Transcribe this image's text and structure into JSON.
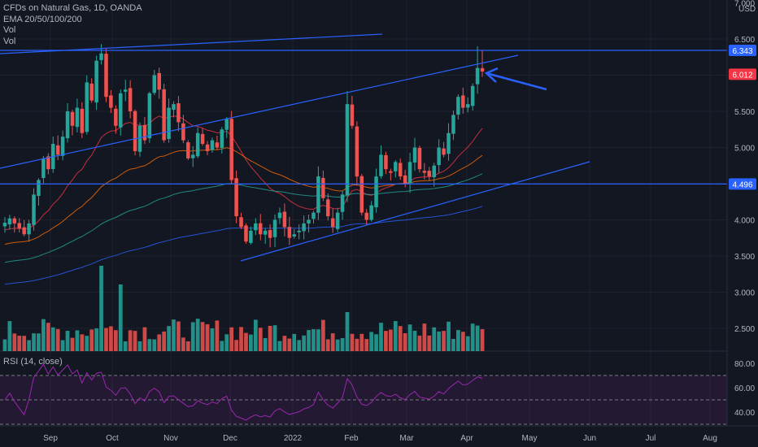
{
  "header": {
    "title": "CFDs on Natural Gas, 1D, OANDA",
    "ema_label": "EMA 20/50/100/200",
    "vol_label_1": "Vol",
    "vol_label_2": "Vol"
  },
  "rsi_panel": {
    "label": "RSI (14, close)"
  },
  "currency_label": "USD",
  "colors": {
    "background": "#131722",
    "up": "#26a69a",
    "down": "#ef5350",
    "trendline": "#2962ff",
    "ema20": "#f23645",
    "ema50": "#ff6d00",
    "ema100": "#26a69a",
    "ema200": "#2962ff",
    "rsi": "#9c27b0"
  },
  "chart_data": {
    "type": "candlestick",
    "symbol": "CFDs on Natural Gas",
    "interval": "1D",
    "source": "OANDA",
    "y_ticks": [
      "7.000",
      "6.500",
      "6.000",
      "5.500",
      "5.000",
      "4.500",
      "4.000",
      "3.500",
      "3.000",
      "2.500"
    ],
    "x_ticks": [
      "Sep",
      "Oct",
      "Nov",
      "Dec",
      "2022",
      "Feb",
      "Mar",
      "Apr",
      "May",
      "Jun",
      "Jul",
      "Aug"
    ],
    "price_labels": [
      {
        "value": "6.343",
        "kind": "horizontal-line"
      },
      {
        "value": "6.012",
        "kind": "last-price"
      },
      {
        "value": "4.496",
        "kind": "horizontal-line"
      }
    ],
    "rsi_ticks": [
      "80.00",
      "60.00",
      "40.00"
    ],
    "rsi_bands": {
      "upper": 70,
      "middle": 50,
      "lower": 30
    },
    "ylim": [
      2.3,
      7.0
    ],
    "close_path": [
      3.96,
      4.02,
      3.95,
      3.88,
      3.8,
      3.95,
      4.35,
      4.55,
      4.85,
      4.7,
      5.05,
      4.9,
      5.15,
      5.5,
      5.3,
      5.55,
      5.2,
      5.9,
      5.65,
      6.2,
      6.3,
      5.7,
      5.55,
      5.3,
      5.75,
      5.8,
      5.5,
      4.95,
      5.3,
      5.1,
      5.75,
      6.0,
      5.8,
      5.1,
      5.55,
      5.6,
      5.35,
      5.1,
      4.85,
      4.9,
      5.2,
      5.05,
      4.95,
      5.1,
      5.0,
      5.25,
      5.4,
      4.55,
      4.05,
      3.9,
      3.7,
      3.85,
      3.95,
      3.8,
      3.85,
      3.75,
      4.0,
      4.1,
      3.9,
      3.75,
      3.8,
      3.85,
      3.95,
      4.0,
      4.1,
      4.6,
      4.3,
      4.05,
      3.9,
      4.1,
      4.35,
      5.6,
      5.3,
      4.6,
      4.1,
      4.0,
      4.2,
      4.6,
      4.9,
      4.7,
      4.65,
      4.8,
      4.6,
      4.5,
      4.8,
      5.0,
      4.7,
      4.65,
      4.6,
      4.75,
      5.0,
      4.9,
      5.2,
      5.45,
      5.7,
      5.55,
      5.6,
      5.85,
      6.1,
      6.05
    ]
  }
}
